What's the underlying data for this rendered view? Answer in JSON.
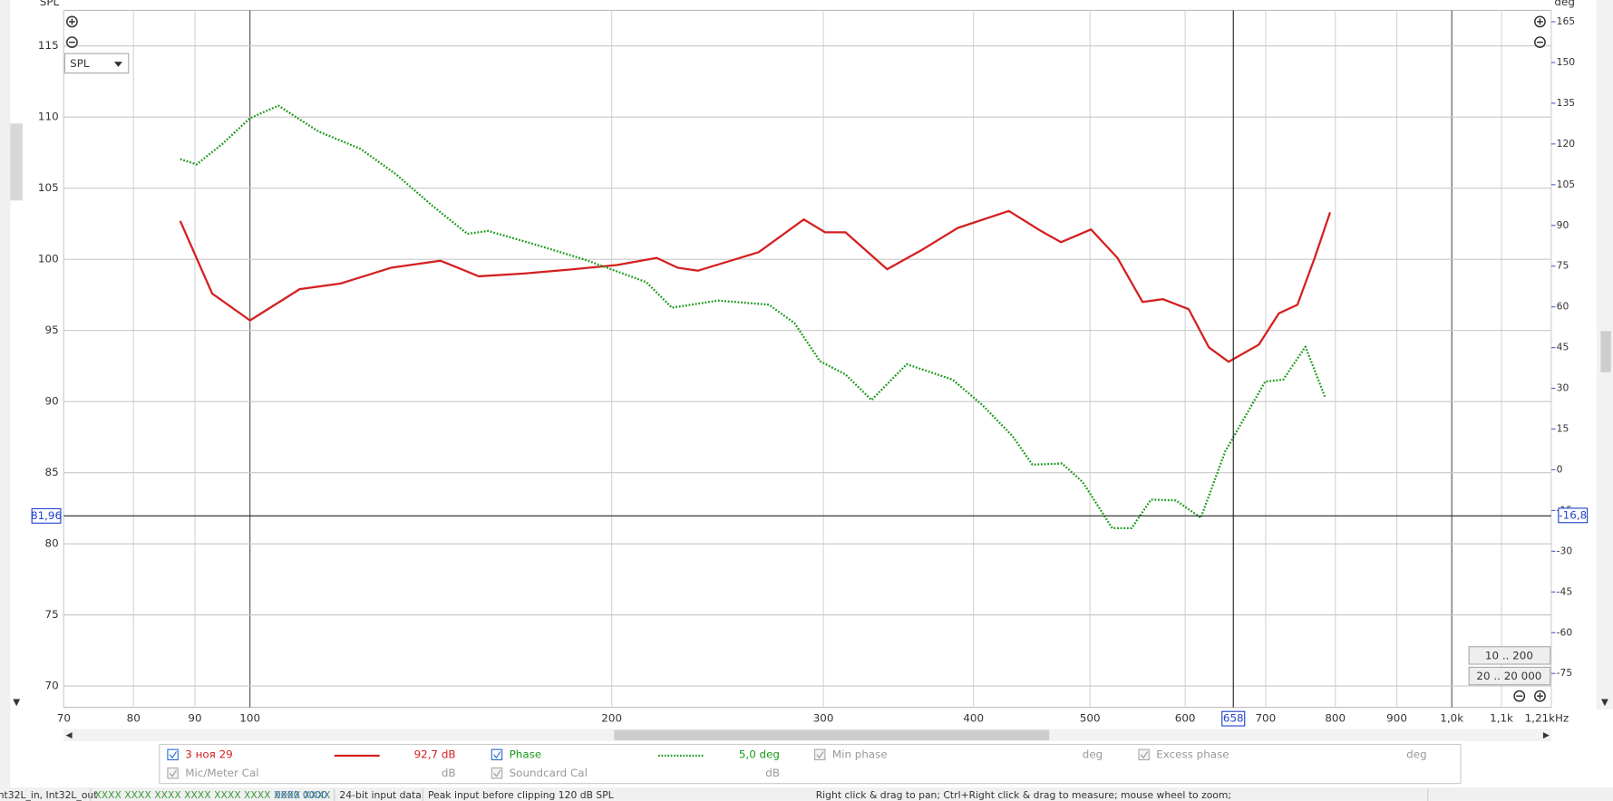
{
  "chart_data": {
    "type": "line",
    "y_axis_label": "SPL",
    "y2_axis_label": "deg",
    "xscale": "log",
    "xlim": [
      70,
      1210
    ],
    "xticks": [
      70,
      80,
      90,
      100,
      200,
      300,
      400,
      500,
      600,
      700,
      800,
      900,
      {
        "value": 1000,
        "label": "1,0k"
      },
      {
        "value": 1100,
        "label": "1,1k"
      },
      {
        "value": 1210,
        "label": "1,21kHz"
      }
    ],
    "ylim": [
      68.5,
      117.5
    ],
    "yticks": [
      70,
      75,
      80,
      85,
      90,
      95,
      100,
      105,
      110,
      115
    ],
    "y2lim": [
      -87.5,
      169.2
    ],
    "y2ticks": [
      -75,
      -60,
      -45,
      -30,
      -15,
      0,
      15,
      30,
      45,
      60,
      75,
      90,
      105,
      120,
      135,
      150,
      165
    ],
    "grid": true,
    "cursor_x": 658,
    "cursor_y": {
      "value": 81.96,
      "label": "81,96"
    },
    "cursor_y2": {
      "value": -16.8,
      "label": "-16,8"
    },
    "series": [
      {
        "name": "3 ноя 29",
        "color": "#d42020",
        "style": "solid",
        "x": [
          87.5,
          93,
          100,
          110,
          119,
          131,
          144,
          149,
          155,
          169,
          186,
          202,
          218,
          227,
          236,
          265,
          289,
          301,
          313,
          339,
          363,
          388,
          428,
          455,
          473,
          501,
          527,
          553,
          575,
          604,
          628,
          652,
          691,
          718,
          744,
          769,
          792
        ],
        "values": [
          102.7,
          97.6,
          95.7,
          97.9,
          98.3,
          99.4,
          99.9,
          99.4,
          98.8,
          99.0,
          99.3,
          99.6,
          100.1,
          99.4,
          99.2,
          100.5,
          102.8,
          101.9,
          101.9,
          99.3,
          100.7,
          102.2,
          103.4,
          102.0,
          101.2,
          102.1,
          100.1,
          97.0,
          97.2,
          96.5,
          93.8,
          92.8,
          94.0,
          96.2,
          96.8,
          100.1,
          103.3
        ]
      },
      {
        "name": "Phase",
        "color": "#1a9a1a",
        "style": "dotted",
        "axis": "y2",
        "x": [
          87.5,
          90.3,
          94.9,
          100,
          105.6,
          114,
          123.6,
          132.3,
          141.7,
          151.7,
          157.8,
          172.3,
          190,
          213.7,
          224.4,
          245.3,
          270.3,
          283.9,
          298,
          313,
          329,
          351.9,
          384.3,
          406.9,
          430.9,
          447.8,
          474,
          493,
          521.8,
          541.6,
          562,
          589.5,
          618.3,
          647.9,
          699.4,
          724,
          755.5,
          785
        ],
        "values": [
          114.4,
          112.5,
          120.1,
          129.5,
          134.1,
          124.6,
          118.2,
          108.8,
          97.4,
          86.9,
          88.0,
          83.1,
          77.4,
          69.1,
          59.7,
          62.3,
          60.8,
          54.0,
          40.0,
          35.1,
          25.7,
          38.9,
          33.2,
          23.8,
          12.5,
          1.9,
          2.3,
          -4.5,
          -21.5,
          -21.5,
          -11.0,
          -11.3,
          -17.7,
          6.8,
          32.5,
          33.2,
          45.3,
          26.4
        ]
      }
    ]
  },
  "ui": {
    "dropdown": "SPL",
    "buttons": [
      "10 .. 200",
      "20 .. 20 000"
    ],
    "legend": {
      "row1": [
        "3 ноя 29",
        "92,7 dB",
        "Phase",
        "5,0 deg",
        "Min phase",
        "deg",
        "Excess phase",
        "deg"
      ],
      "row2": [
        "Mic/Meter Cal",
        "dB",
        "Soundcard Cal",
        "dB"
      ]
    },
    "status": [
      "nt32L_in, Int32L_out",
      "XXXX XXXX  XXXX XXXX  XXXX XXXX  XXXX XXXX",
      "0000 0000",
      "24-bit input data",
      "Peak input before clipping 120 dB SPL",
      "Right click & drag to pan; Ctrl+Right click & drag to measure; mouse wheel to zoom;"
    ]
  }
}
